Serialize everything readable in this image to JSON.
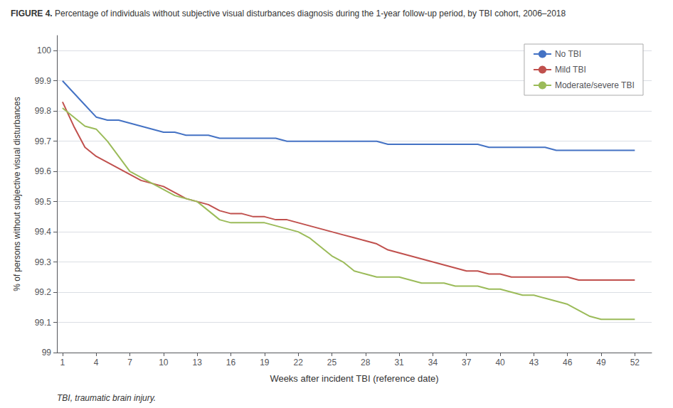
{
  "chart_data": {
    "type": "line",
    "title": "FIGURE 4.",
    "subtitle": "Percentage of individuals without subjective visual disturbances diagnosis during the 1-year follow-up period, by TBI cohort, 2006–2018",
    "x_label": "Weeks after incident TBI (reference date)",
    "y_label": "% of persons without subjective visual disturbances",
    "footnote": "TBI, traumatic brain injury.",
    "x": [
      1,
      2,
      3,
      4,
      5,
      6,
      7,
      8,
      9,
      10,
      11,
      12,
      13,
      14,
      15,
      16,
      17,
      18,
      19,
      20,
      21,
      22,
      23,
      24,
      25,
      26,
      27,
      28,
      29,
      30,
      31,
      32,
      33,
      34,
      35,
      36,
      37,
      38,
      39,
      40,
      41,
      42,
      43,
      44,
      45,
      46,
      47,
      48,
      49,
      50,
      51,
      52
    ],
    "series": [
      {
        "name": "No TBI",
        "color": "#4472C4",
        "values": [
          99.9,
          99.86,
          99.82,
          99.78,
          99.77,
          99.77,
          99.76,
          99.75,
          99.74,
          99.73,
          99.73,
          99.72,
          99.72,
          99.72,
          99.71,
          99.71,
          99.71,
          99.71,
          99.71,
          99.71,
          99.7,
          99.7,
          99.7,
          99.7,
          99.7,
          99.7,
          99.7,
          99.7,
          99.7,
          99.69,
          99.69,
          99.69,
          99.69,
          99.69,
          99.69,
          99.69,
          99.69,
          99.69,
          99.68,
          99.68,
          99.68,
          99.68,
          99.68,
          99.68,
          99.67,
          99.67,
          99.67,
          99.67,
          99.67,
          99.67,
          99.67,
          99.67
        ]
      },
      {
        "name": "Mild TBI",
        "color": "#C0504D",
        "values": [
          99.83,
          99.75,
          99.68,
          99.65,
          99.63,
          99.61,
          99.59,
          99.57,
          99.56,
          99.55,
          99.53,
          99.51,
          99.5,
          99.49,
          99.47,
          99.46,
          99.46,
          99.45,
          99.45,
          99.44,
          99.44,
          99.43,
          99.42,
          99.41,
          99.4,
          99.39,
          99.38,
          99.37,
          99.36,
          99.34,
          99.33,
          99.32,
          99.31,
          99.3,
          99.29,
          99.28,
          99.27,
          99.27,
          99.26,
          99.26,
          99.25,
          99.25,
          99.25,
          99.25,
          99.25,
          99.25,
          99.24,
          99.24,
          99.24,
          99.24,
          99.24,
          99.24
        ]
      },
      {
        "name": "Moderate/severe TBI",
        "color": "#9BBB59",
        "values": [
          99.81,
          99.78,
          99.75,
          99.74,
          99.7,
          99.65,
          99.6,
          99.58,
          99.56,
          99.54,
          99.52,
          99.51,
          99.5,
          99.47,
          99.44,
          99.43,
          99.43,
          99.43,
          99.43,
          99.42,
          99.41,
          99.4,
          99.38,
          99.35,
          99.32,
          99.3,
          99.27,
          99.26,
          99.25,
          99.25,
          99.25,
          99.24,
          99.23,
          99.23,
          99.23,
          99.22,
          99.22,
          99.22,
          99.21,
          99.21,
          99.2,
          99.19,
          99.19,
          99.18,
          99.17,
          99.16,
          99.14,
          99.12,
          99.11,
          99.11,
          99.11,
          99.11
        ]
      }
    ],
    "xlim": [
      0.5,
      53.5
    ],
    "xticks": [
      1,
      4,
      7,
      10,
      13,
      16,
      19,
      22,
      25,
      28,
      31,
      34,
      37,
      40,
      43,
      46,
      49,
      52
    ],
    "ylim": [
      99.0,
      100.05
    ],
    "yticks": [
      99.0,
      99.1,
      99.2,
      99.3,
      99.4,
      99.5,
      99.6,
      99.7,
      99.8,
      99.9,
      100
    ],
    "grid": true,
    "legend": "upper right"
  }
}
